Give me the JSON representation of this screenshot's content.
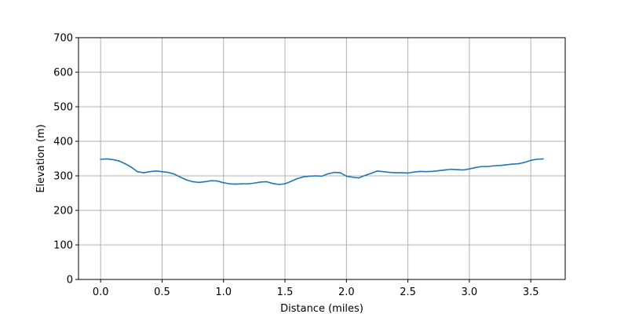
{
  "chart_data": {
    "type": "line",
    "title": "",
    "xlabel": "Distance (miles)",
    "ylabel": "Elevation (m)",
    "xlim": [
      -0.18,
      3.78
    ],
    "ylim": [
      0,
      700
    ],
    "grid": true,
    "legend": "none",
    "x_ticks": [
      0.0,
      0.5,
      1.0,
      1.5,
      2.0,
      2.5,
      3.0,
      3.5
    ],
    "x_tick_labels": [
      "0.0",
      "0.5",
      "1.0",
      "1.5",
      "2.0",
      "2.5",
      "3.0",
      "3.5"
    ],
    "y_ticks": [
      0,
      100,
      200,
      300,
      400,
      500,
      600,
      700
    ],
    "y_tick_labels": [
      "0",
      "100",
      "200",
      "300",
      "400",
      "500",
      "600",
      "700"
    ],
    "colors": {
      "line": "#1f77b4",
      "grid": "#b0b0b0",
      "axis": "#000000"
    },
    "series": [
      {
        "x": [
          0.0,
          0.05,
          0.1,
          0.15,
          0.2,
          0.25,
          0.3,
          0.35,
          0.4,
          0.45,
          0.5,
          0.55,
          0.6,
          0.65,
          0.7,
          0.75,
          0.8,
          0.85,
          0.9,
          0.95,
          1.0,
          1.05,
          1.1,
          1.15,
          1.2,
          1.25,
          1.3,
          1.35,
          1.4,
          1.45,
          1.5,
          1.55,
          1.6,
          1.65,
          1.7,
          1.75,
          1.8,
          1.85,
          1.9,
          1.95,
          2.0,
          2.05,
          2.1,
          2.15,
          2.2,
          2.25,
          2.3,
          2.35,
          2.4,
          2.45,
          2.5,
          2.55,
          2.6,
          2.65,
          2.7,
          2.75,
          2.8,
          2.85,
          2.9,
          2.95,
          3.0,
          3.05,
          3.1,
          3.15,
          3.2,
          3.25,
          3.3,
          3.35,
          3.4,
          3.45,
          3.5,
          3.55,
          3.6
        ],
        "values": [
          348,
          349,
          347,
          343,
          335,
          325,
          312,
          309,
          312,
          314,
          312,
          310,
          305,
          296,
          288,
          283,
          281,
          283,
          286,
          285,
          280,
          277,
          276,
          277,
          277,
          279,
          282,
          283,
          278,
          275,
          277,
          284,
          292,
          297,
          299,
          300,
          299,
          306,
          310,
          309,
          299,
          296,
          294,
          301,
          307,
          314,
          312,
          310,
          309,
          309,
          308,
          311,
          313,
          312,
          313,
          315,
          317,
          319,
          318,
          317,
          320,
          324,
          327,
          327,
          329,
          330,
          332,
          334,
          335,
          339,
          345,
          348,
          349
        ]
      }
    ]
  }
}
